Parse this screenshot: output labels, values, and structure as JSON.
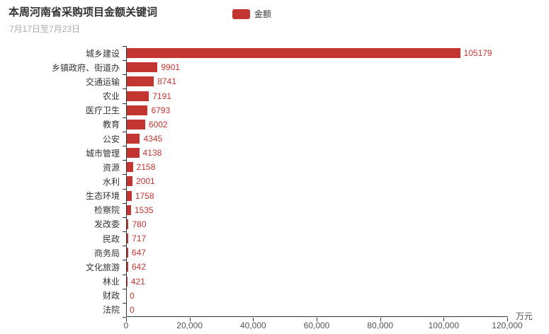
{
  "header": {
    "title": "本周河南省采购项目金额关键词",
    "subtitle": "7月17日至7月23日"
  },
  "legend": {
    "label": "金额",
    "color": "#c23531"
  },
  "chart_data": {
    "type": "bar",
    "orientation": "horizontal",
    "title": "本周河南省采购项目金额关键词",
    "subtitle": "7月17日至7月23日",
    "series_name": "金额",
    "categories": [
      "城乡建设",
      "乡镇政府、街道办",
      "交通运输",
      "农业",
      "医疗卫生",
      "教育",
      "公安",
      "城市管理",
      "资源",
      "水利",
      "生态环境",
      "检察院",
      "发改委",
      "民政",
      "商务局",
      "文化旅游",
      "林业",
      "财政",
      "法院"
    ],
    "values": [
      105179,
      9901,
      8741,
      7191,
      6793,
      6002,
      4345,
      4138,
      2158,
      2001,
      1758,
      1535,
      780,
      717,
      647,
      642,
      421,
      0,
      0
    ],
    "xlim": [
      0,
      120000
    ],
    "x_ticks": [
      0,
      20000,
      40000,
      60000,
      80000,
      100000,
      120000
    ],
    "x_tick_labels": [
      "0",
      "20,000",
      "40,000",
      "60,000",
      "80,000",
      "100,000",
      "120,000"
    ],
    "x_unit": "万元",
    "bar_color": "#c23531",
    "value_label_color": "#c23531",
    "grid": false,
    "legend_position": "top",
    "value_labels_shown": true
  }
}
